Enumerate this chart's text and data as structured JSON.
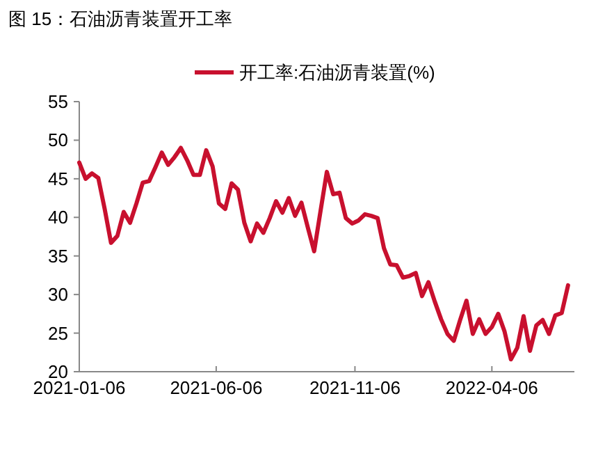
{
  "chart_data": {
    "type": "line",
    "title": "图 15：石油沥青装置开工率",
    "x": [
      "2021-01-06",
      "2021-01-13",
      "2021-01-20",
      "2021-01-27",
      "2021-02-03",
      "2021-02-10",
      "2021-02-17",
      "2021-02-24",
      "2021-03-03",
      "2021-03-10",
      "2021-03-17",
      "2021-03-24",
      "2021-03-31",
      "2021-04-07",
      "2021-04-14",
      "2021-04-21",
      "2021-04-28",
      "2021-05-05",
      "2021-05-12",
      "2021-05-19",
      "2021-05-26",
      "2021-06-02",
      "2021-06-09",
      "2021-06-16",
      "2021-06-23",
      "2021-06-30",
      "2021-07-07",
      "2021-07-14",
      "2021-07-21",
      "2021-07-28",
      "2021-08-04",
      "2021-08-11",
      "2021-08-18",
      "2021-08-25",
      "2021-09-01",
      "2021-09-08",
      "2021-09-15",
      "2021-09-22",
      "2021-09-29",
      "2021-10-06",
      "2021-10-13",
      "2021-10-20",
      "2021-10-27",
      "2021-11-03",
      "2021-11-10",
      "2021-11-17",
      "2021-11-24",
      "2021-12-01",
      "2021-12-08",
      "2021-12-15",
      "2021-12-22",
      "2021-12-29",
      "2022-01-05",
      "2022-01-12",
      "2022-01-19",
      "2022-01-26",
      "2022-02-02",
      "2022-02-09",
      "2022-02-16",
      "2022-02-23",
      "2022-03-02",
      "2022-03-09",
      "2022-03-16",
      "2022-03-23",
      "2022-03-30",
      "2022-04-06",
      "2022-04-13",
      "2022-04-20",
      "2022-04-27",
      "2022-05-04",
      "2022-05-11",
      "2022-05-18",
      "2022-05-25",
      "2022-06-01",
      "2022-06-08",
      "2022-06-15",
      "2022-06-22",
      "2022-06-29"
    ],
    "series": [
      {
        "name": "开工率:石油沥青装置(%)",
        "color": "#c8102e",
        "values": [
          47.1,
          45.0,
          45.7,
          45.1,
          41.1,
          36.7,
          37.6,
          40.7,
          39.3,
          41.8,
          44.5,
          44.7,
          46.5,
          48.4,
          46.8,
          47.8,
          49.0,
          47.4,
          45.5,
          45.5,
          48.7,
          46.6,
          41.8,
          41.1,
          44.4,
          43.6,
          39.3,
          36.9,
          39.2,
          38.0,
          39.9,
          42.1,
          40.6,
          42.5,
          40.2,
          41.9,
          38.7,
          35.6,
          40.8,
          45.9,
          43.0,
          43.2,
          39.9,
          39.2,
          39.6,
          40.4,
          40.2,
          39.9,
          36.0,
          33.9,
          33.8,
          32.2,
          32.4,
          32.8,
          29.8,
          31.6,
          29.1,
          26.8,
          24.9,
          24.0,
          26.7,
          29.2,
          24.9,
          26.8,
          24.9,
          25.8,
          27.5,
          25.2,
          21.6,
          23.1,
          27.2,
          22.7,
          26.0,
          26.7,
          24.9,
          27.3,
          27.6,
          31.2
        ]
      }
    ],
    "xlim": [
      "2021-01-06",
      "2022-07-06"
    ],
    "xticks": [
      "2021-01-06",
      "2021-06-06",
      "2021-11-06",
      "2022-04-06"
    ],
    "ylim": [
      20,
      55
    ],
    "yticks": [
      20,
      25,
      30,
      35,
      40,
      45,
      50,
      55
    ],
    "grid": false,
    "legend": "top",
    "marker": "none",
    "line_style": "solid"
  }
}
